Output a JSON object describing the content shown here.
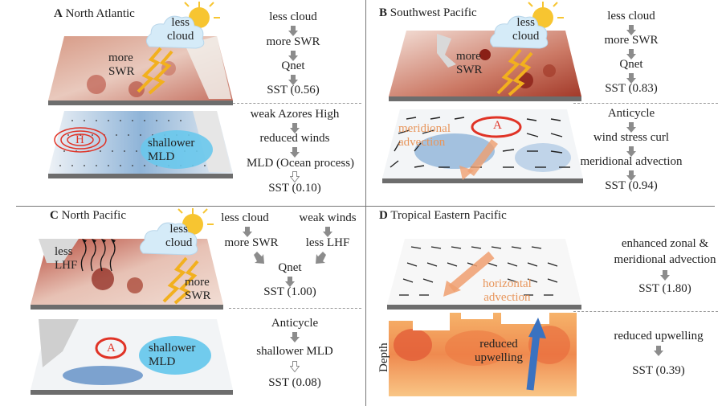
{
  "panelA": {
    "letter": "A",
    "title": "North Atlantic",
    "cloud_label": "less\ncloud",
    "swr_label": "more\nSWR",
    "chain1": [
      "less cloud",
      "more SWR",
      "Qnet",
      "SST (0.56)"
    ],
    "chain2": [
      "weak Azores High",
      "reduced winds",
      "MLD (Ocean process)",
      "SST (0.10)"
    ],
    "high_label": "H",
    "mld_label": "shallower\nMLD"
  },
  "panelB": {
    "letter": "B",
    "title": "Southwest Pacific",
    "cloud_label": "less\ncloud",
    "swr_label": "more\nSWR",
    "chain1": [
      "less cloud",
      "more SWR",
      "Qnet",
      "SST (0.83)"
    ],
    "chain2": [
      "Anticycle",
      "wind stress curl",
      "meridional advection",
      "SST (0.94)"
    ],
    "anticycle_label": "A",
    "advection_label": "meridional\nadvection"
  },
  "panelC": {
    "letter": "C",
    "title": "North Pacific",
    "cloud_label": "less\ncloud",
    "swr_label": "more\nSWR",
    "lhf_label": "less\nLHF",
    "chain1_left": [
      "less cloud",
      "more SWR"
    ],
    "chain1_right": [
      "weak winds",
      "less LHF"
    ],
    "chain1_join": [
      "Qnet",
      "SST (1.00)"
    ],
    "chain2": [
      "Anticycle",
      "shallower MLD",
      "SST (0.08)"
    ],
    "anticycle_label": "A",
    "mld_label": "shallower\nMLD"
  },
  "panelD": {
    "letter": "D",
    "title": "Tropical Eastern Pacific",
    "chain1": [
      "enhanced zonal &",
      "meridional advection",
      "SST (1.80)"
    ],
    "chain2": [
      "reduced upwelling",
      "SST (0.39)"
    ],
    "horizontal_label": "horizontal\nadvection",
    "upwelling_label": "reduced\nupwelling",
    "depth_label": "Depth"
  },
  "colors": {
    "arrow_fill": "#8c8c8c",
    "swr_arrow": "#f2b01e",
    "sun": "#f7c531",
    "cloud": "#cfe8f8",
    "blob": "#69c8ec",
    "high_ring": "#e03326",
    "advection_arrow": "#f0a070",
    "upwelling_arrow": "#3a72c0"
  }
}
